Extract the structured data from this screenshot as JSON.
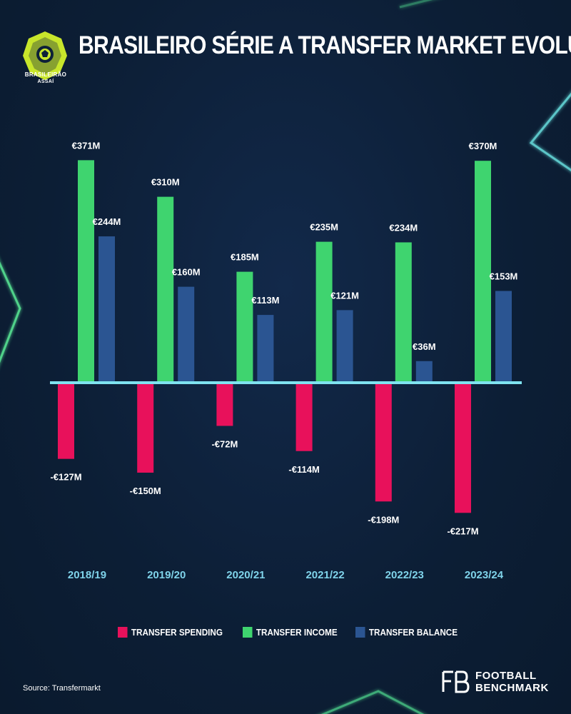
{
  "title": "BRASILEIRO SÉRIE A TRANSFER MARKET EVOLUTION",
  "logo": {
    "name": "BRASILEIRÃO",
    "sub": "ASSAÍ"
  },
  "source": "Source: Transfermarkt",
  "brand": {
    "line1": "FOOTBALL",
    "line2": "BENCHMARK"
  },
  "colors": {
    "background": "#0d2038",
    "spending": "#e8115b",
    "income": "#3fd46f",
    "balance": "#2b5592",
    "baseline": "#7fe3f0",
    "category_label": "#7fd3ea"
  },
  "chart_data": {
    "type": "bar",
    "categories": [
      "2018/19",
      "2019/20",
      "2020/21",
      "2021/22",
      "2022/23",
      "2023/24"
    ],
    "series": [
      {
        "name": "TRANSFER SPENDING",
        "values": [
          -127,
          -150,
          -72,
          -114,
          -198,
          -217
        ],
        "labels": [
          "-€127M",
          "-€150M",
          "-€72M",
          "-€114M",
          "-€198M",
          "-€217M"
        ]
      },
      {
        "name": "TRANSFER INCOME",
        "values": [
          371,
          310,
          185,
          235,
          234,
          370
        ],
        "labels": [
          "€371M",
          "€310M",
          "€185M",
          "€235M",
          "€234M",
          "€370M"
        ]
      },
      {
        "name": "TRANSFER BALANCE",
        "values": [
          244,
          160,
          113,
          121,
          36,
          153
        ],
        "labels": [
          "€244M",
          "€160M",
          "€113M",
          "€121M",
          "€36M",
          "€153M"
        ]
      }
    ],
    "unit": "€M",
    "legend_position": "bottom",
    "grid": false
  }
}
